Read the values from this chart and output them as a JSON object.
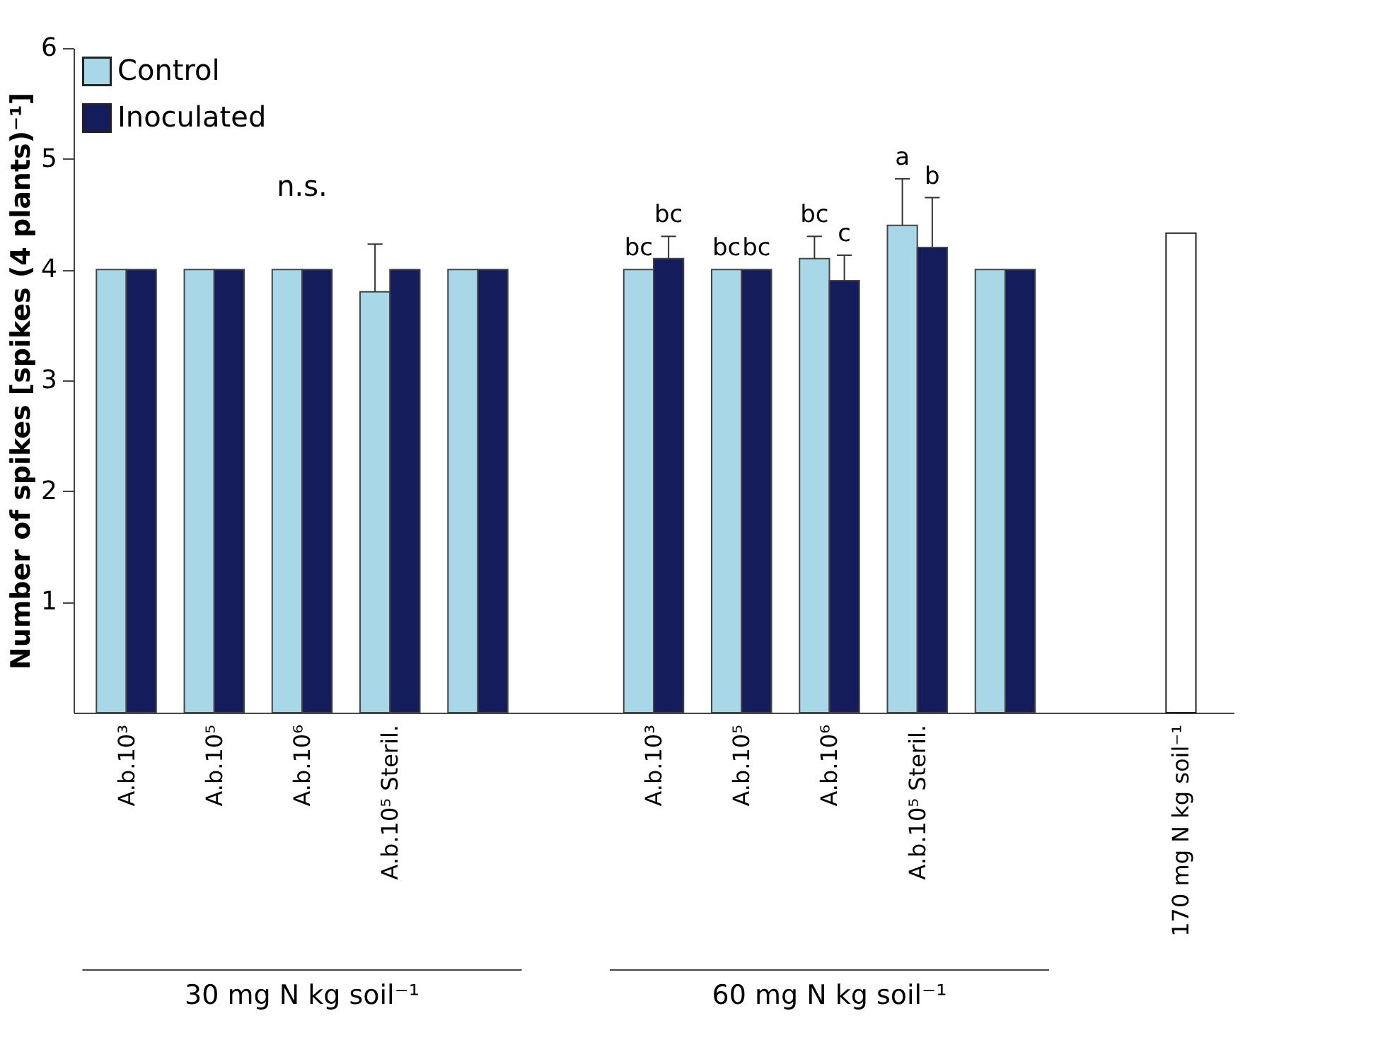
{
  "chart_data": {
    "type": "bar",
    "ylabel": "Number of spikes [spikes (4 plants)⁻¹]",
    "categories": [
      "A.b.10³",
      "A.b.10⁵",
      "A.b.10⁶",
      "A.b.10⁵ Steril.",
      null,
      null,
      "A.b.10³",
      "A.b.10⁵",
      "A.b.10⁶",
      "A.b.10⁵ Steril.",
      null,
      null,
      "170 mg N kg soil⁻¹"
    ],
    "series": [
      {
        "name": "Control",
        "color": "#a8d8e8",
        "values": [
          4,
          4,
          4,
          3.8,
          4,
          null,
          4,
          4,
          4.1,
          4.4,
          4,
          null,
          null
        ],
        "value_labels": [
          null,
          null,
          null,
          null,
          null,
          null,
          "bc",
          "bc",
          "bc",
          "a",
          null,
          null,
          null
        ],
        "errors": [
          null,
          null,
          null,
          [
            3.8,
            4.23
          ],
          null,
          null,
          null,
          null,
          [
            4.1,
            4.3
          ],
          [
            4.4,
            4.82
          ],
          null,
          null,
          null
        ]
      },
      {
        "name": "Inoculated",
        "color": "#141c5c",
        "values": [
          4,
          4,
          4,
          4,
          4,
          null,
          4.1,
          4,
          3.9,
          4.2,
          4,
          null,
          null
        ],
        "value_labels": [
          null,
          null,
          null,
          null,
          null,
          null,
          "bc",
          "bc",
          "c",
          "b",
          null,
          null,
          null
        ],
        "errors": [
          null,
          null,
          null,
          null,
          null,
          null,
          [
            4.1,
            4.3
          ],
          null,
          [
            3.9,
            4.13
          ],
          [
            4.2,
            4.65
          ],
          null,
          null,
          null
        ]
      },
      {
        "color": "#ffffff",
        "values": [
          null,
          null,
          null,
          null,
          null,
          null,
          null,
          null,
          null,
          null,
          null,
          null,
          4.33
        ]
      }
    ],
    "ylim": [
      0,
      6
    ],
    "yticks": [
      1,
      2,
      3,
      4,
      5,
      6
    ],
    "grid": false,
    "legend": "top left",
    "annotations": [
      "30 mg N kg soil⁻¹",
      "60 mg N kg soil⁻¹",
      "n.s."
    ]
  }
}
